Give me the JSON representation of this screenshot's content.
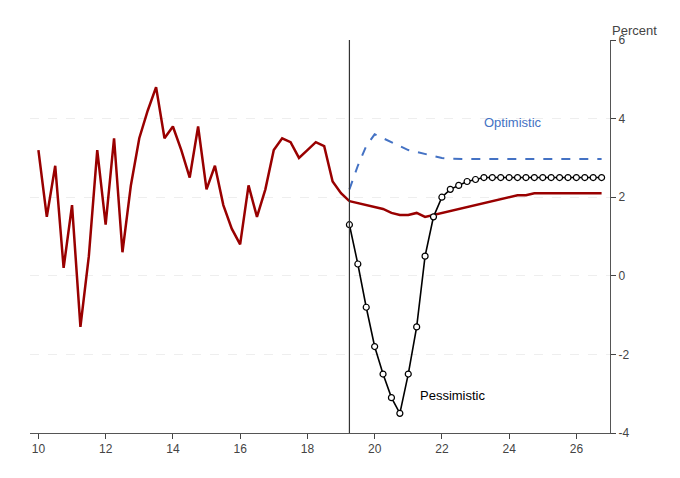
{
  "chart_data": {
    "type": "line",
    "ylabel": "Percent",
    "xlim": [
      9.75,
      27.0
    ],
    "xticks": [
      10,
      12,
      14,
      16,
      18,
      20,
      22,
      24,
      26
    ],
    "ylim": [
      -4,
      6
    ],
    "yticks": [
      -4,
      -2,
      0,
      2,
      4,
      6
    ],
    "grid": true,
    "vertical_lines": [
      19.25
    ],
    "series": [
      {
        "color": "#990000",
        "line_style": "solid",
        "x": [
          10.0,
          10.25,
          10.5,
          10.75,
          11.0,
          11.25,
          11.5,
          11.75,
          12.0,
          12.25,
          12.5,
          12.75,
          13.0,
          13.25,
          13.5,
          13.75,
          14.0,
          14.25,
          14.5,
          14.75,
          15.0,
          15.25,
          15.5,
          15.75,
          16.0,
          16.25,
          16.5,
          16.75,
          17.0,
          17.25,
          17.5,
          17.75,
          18.0,
          18.25,
          18.5,
          18.75,
          19.0,
          19.25
        ],
        "values": [
          3.2,
          1.5,
          2.8,
          0.2,
          1.8,
          -1.3,
          0.5,
          3.2,
          1.3,
          3.5,
          0.6,
          2.3,
          3.5,
          4.2,
          4.8,
          3.5,
          3.8,
          3.2,
          2.5,
          3.8,
          2.2,
          2.8,
          1.8,
          1.2,
          0.8,
          2.3,
          1.5,
          2.2,
          3.2,
          3.5,
          3.4,
          3.0,
          3.2,
          3.4,
          3.3,
          2.4,
          2.1,
          1.9
        ]
      },
      {
        "color": "#990000",
        "line_style": "solid",
        "x": [
          19.25,
          19.5,
          19.75,
          20.0,
          20.25,
          20.5,
          20.75,
          21.0,
          21.25,
          21.5,
          21.75,
          22.0,
          22.25,
          22.5,
          22.75,
          23.0,
          23.25,
          23.5,
          23.75,
          24.0,
          24.25,
          24.5,
          24.75,
          25.0,
          25.25,
          25.5,
          25.75,
          26.0,
          26.25,
          26.5,
          26.75
        ],
        "values": [
          1.9,
          1.85,
          1.8,
          1.75,
          1.7,
          1.6,
          1.55,
          1.55,
          1.6,
          1.5,
          1.55,
          1.6,
          1.65,
          1.7,
          1.75,
          1.8,
          1.85,
          1.9,
          1.95,
          2.0,
          2.05,
          2.05,
          2.1,
          2.1,
          2.1,
          2.1,
          2.1,
          2.1,
          2.1,
          2.1,
          2.1
        ]
      },
      {
        "color": "#4472C4",
        "line_style": "dashed",
        "x": [
          19.25,
          19.5,
          19.75,
          20.0,
          20.25,
          20.5,
          20.75,
          21.0,
          21.25,
          21.5,
          21.75,
          22.0,
          22.25,
          22.5,
          22.75,
          23.0,
          23.25,
          23.5,
          23.75,
          24.0,
          24.25,
          24.5,
          24.75,
          25.0,
          25.25,
          25.5,
          25.75,
          26.0,
          26.25,
          26.5,
          26.75
        ],
        "values": [
          2.2,
          2.8,
          3.3,
          3.6,
          3.5,
          3.4,
          3.3,
          3.2,
          3.15,
          3.1,
          3.05,
          3.0,
          2.98,
          2.97,
          2.97,
          2.97,
          2.97,
          2.97,
          2.97,
          2.97,
          2.97,
          2.97,
          2.97,
          2.97,
          2.97,
          2.97,
          2.97,
          2.97,
          2.97,
          2.97,
          2.97
        ]
      },
      {
        "color": "#000000",
        "line_style": "solid",
        "marker": "circle",
        "x": [
          19.25,
          19.5,
          19.75,
          20.0,
          20.25,
          20.5,
          20.75,
          21.0,
          21.25,
          21.5,
          21.75,
          22.0,
          22.25,
          22.5,
          22.75,
          23.0,
          23.25,
          23.5,
          23.75,
          24.0,
          24.25,
          24.5,
          24.75,
          25.0,
          25.25,
          25.5,
          25.75,
          26.0,
          26.25,
          26.5,
          26.75
        ],
        "values": [
          1.3,
          0.3,
          -0.8,
          -1.8,
          -2.5,
          -3.1,
          -3.5,
          -2.5,
          -1.3,
          0.5,
          1.5,
          2.0,
          2.2,
          2.3,
          2.4,
          2.45,
          2.5,
          2.5,
          2.5,
          2.5,
          2.5,
          2.5,
          2.5,
          2.5,
          2.5,
          2.5,
          2.5,
          2.5,
          2.5,
          2.5,
          2.5
        ]
      }
    ],
    "annotations": [
      {
        "text": "Optimistic",
        "x": 23.2,
        "y": 3.65,
        "color": "#4472C4"
      },
      {
        "text": "Pessimistic",
        "x": 21.3,
        "y": -2.8,
        "color": "#000000"
      }
    ]
  }
}
